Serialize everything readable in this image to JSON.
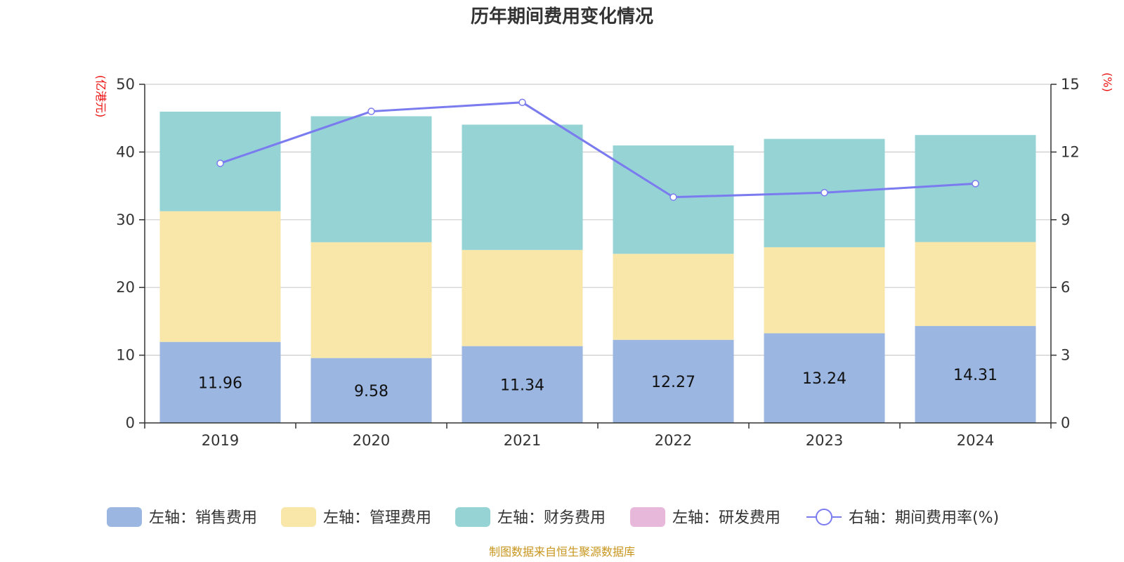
{
  "colors": {
    "sales": "#9ab6e1",
    "admin": "#f8e7a9",
    "finance": "#96d3d5",
    "rnd": "#e7b8da",
    "rate": "#7b7bf0",
    "grid": "#cccccc",
    "axis": "#333333",
    "unit": "#ee1111",
    "source": "#c8961e"
  },
  "chart_data": {
    "type": "bar",
    "stacked": true,
    "title": "历年期间费用变化情况",
    "categories": [
      "2019",
      "2020",
      "2021",
      "2022",
      "2023",
      "2024"
    ],
    "left_axis": {
      "unit_label": "(亿港元)",
      "range": [
        0,
        50
      ],
      "ticks": [
        "0",
        "10",
        "20",
        "30",
        "40",
        "50"
      ]
    },
    "right_axis": {
      "unit_label": "(%)",
      "range": [
        0,
        15
      ],
      "ticks": [
        "0",
        "3",
        "6",
        "9",
        "12",
        "15"
      ]
    },
    "grid": true,
    "legend_position": "bottom",
    "series": [
      {
        "name": "左轴：销售费用",
        "type": "bar",
        "axis": "left",
        "color_key": "sales",
        "values": [
          11.96,
          9.58,
          11.34,
          12.27,
          13.24,
          14.31
        ],
        "labels": [
          "11.96",
          "9.58",
          "11.34",
          "12.27",
          "13.24",
          "14.31"
        ]
      },
      {
        "name": "左轴：管理费用",
        "type": "bar",
        "axis": "left",
        "color_key": "admin",
        "values": [
          19.3,
          17.1,
          14.2,
          12.7,
          12.7,
          12.4
        ]
      },
      {
        "name": "左轴：财务费用",
        "type": "bar",
        "axis": "left",
        "color_key": "finance",
        "values": [
          14.7,
          18.6,
          18.5,
          16.0,
          16.0,
          15.8
        ]
      },
      {
        "name": "左轴：研发费用",
        "type": "bar",
        "axis": "left",
        "color_key": "rnd",
        "values": [
          0,
          0,
          0,
          0,
          0,
          0
        ]
      },
      {
        "name": "右轴：期间费用率(%)",
        "type": "line",
        "axis": "right",
        "color_key": "rate",
        "values": [
          11.5,
          13.8,
          14.2,
          10.0,
          10.2,
          10.6
        ]
      }
    ]
  },
  "footer": {
    "source": "制图数据来自恒生聚源数据库"
  }
}
